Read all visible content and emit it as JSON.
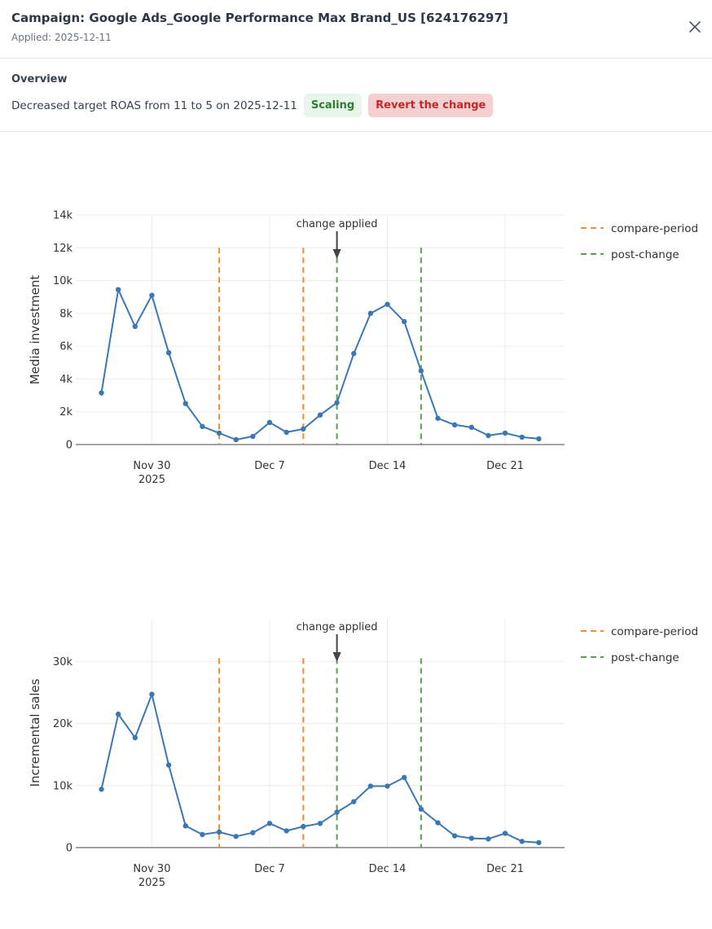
{
  "header": {
    "title": "Campaign: Google Ads_Google Performance Max Brand_US [624176297]",
    "applied": "Applied: 2025-12-11"
  },
  "overview": {
    "heading": "Overview",
    "description": "Decreased target ROAS from 11 to 5 on 2025-12-11",
    "badge": "Scaling",
    "revert_label": "Revert the change"
  },
  "colors": {
    "series": "#3b78b3",
    "compare": "#f28e2b",
    "post": "#59a14f",
    "grid": "#ececec"
  },
  "chart_data": [
    {
      "type": "line",
      "ylabel": "Media investment",
      "x": [
        "2025-11-27",
        "2025-11-28",
        "2025-11-29",
        "2025-11-30",
        "2025-12-01",
        "2025-12-02",
        "2025-12-03",
        "2025-12-04",
        "2025-12-05",
        "2025-12-06",
        "2025-12-07",
        "2025-12-08",
        "2025-12-09",
        "2025-12-10",
        "2025-12-11",
        "2025-12-12",
        "2025-12-13",
        "2025-12-14",
        "2025-12-15",
        "2025-12-16",
        "2025-12-17",
        "2025-12-18",
        "2025-12-19",
        "2025-12-20",
        "2025-12-21",
        "2025-12-22",
        "2025-12-23"
      ],
      "values": [
        3150,
        9450,
        7200,
        9100,
        5600,
        2500,
        1100,
        700,
        300,
        500,
        1350,
        750,
        950,
        1800,
        2550,
        5550,
        8000,
        8550,
        7500,
        4500,
        1600,
        1200,
        1050,
        550,
        700,
        450,
        350
      ],
      "ylim": [
        0,
        14000
      ],
      "yticks": [
        0,
        2000,
        4000,
        6000,
        8000,
        10000,
        12000,
        14000
      ],
      "ytick_labels": [
        "0",
        "2k",
        "4k",
        "6k",
        "8k",
        "10k",
        "12k",
        "14k"
      ],
      "xticks": [
        {
          "date": "2025-11-30",
          "label": "Nov 30",
          "sublabel": "2025"
        },
        {
          "date": "2025-12-07",
          "label": "Dec 7",
          "sublabel": ""
        },
        {
          "date": "2025-12-14",
          "label": "Dec 14",
          "sublabel": ""
        },
        {
          "date": "2025-12-21",
          "label": "Dec 21",
          "sublabel": ""
        }
      ],
      "compare_lines": [
        "2025-12-04",
        "2025-12-09"
      ],
      "post_lines": [
        "2025-12-11",
        "2025-12-16"
      ],
      "vline_top": 12000,
      "annotation": {
        "text": "change applied",
        "date": "2025-12-11"
      },
      "legend": [
        "compare-period",
        "post-change"
      ]
    },
    {
      "type": "line",
      "ylabel": "Incremental sales",
      "x": [
        "2025-11-27",
        "2025-11-28",
        "2025-11-29",
        "2025-11-30",
        "2025-12-01",
        "2025-12-02",
        "2025-12-03",
        "2025-12-04",
        "2025-12-05",
        "2025-12-06",
        "2025-12-07",
        "2025-12-08",
        "2025-12-09",
        "2025-12-10",
        "2025-12-11",
        "2025-12-12",
        "2025-12-13",
        "2025-12-14",
        "2025-12-15",
        "2025-12-16",
        "2025-12-17",
        "2025-12-18",
        "2025-12-19",
        "2025-12-20",
        "2025-12-21",
        "2025-12-22",
        "2025-12-23"
      ],
      "values": [
        9400,
        21500,
        17700,
        24700,
        13300,
        3500,
        2100,
        2500,
        1800,
        2400,
        3900,
        2700,
        3400,
        3900,
        5700,
        7400,
        9900,
        9900,
        11300,
        6200,
        4000,
        1900,
        1500,
        1400,
        2300,
        1000,
        800
      ],
      "ylim": [
        0,
        37000
      ],
      "yticks": [
        0,
        10000,
        20000,
        30000
      ],
      "ytick_labels": [
        "0",
        "10k",
        "20k",
        "30k"
      ],
      "xticks": [
        {
          "date": "2025-11-30",
          "label": "Nov 30",
          "sublabel": "2025"
        },
        {
          "date": "2025-12-07",
          "label": "Dec 7",
          "sublabel": ""
        },
        {
          "date": "2025-12-14",
          "label": "Dec 14",
          "sublabel": ""
        },
        {
          "date": "2025-12-21",
          "label": "Dec 21",
          "sublabel": ""
        }
      ],
      "compare_lines": [
        "2025-12-04",
        "2025-12-09"
      ],
      "post_lines": [
        "2025-12-11",
        "2025-12-16"
      ],
      "vline_top": 30500,
      "annotation": {
        "text": "change applied",
        "date": "2025-12-11"
      },
      "legend": [
        "compare-period",
        "post-change"
      ]
    }
  ]
}
